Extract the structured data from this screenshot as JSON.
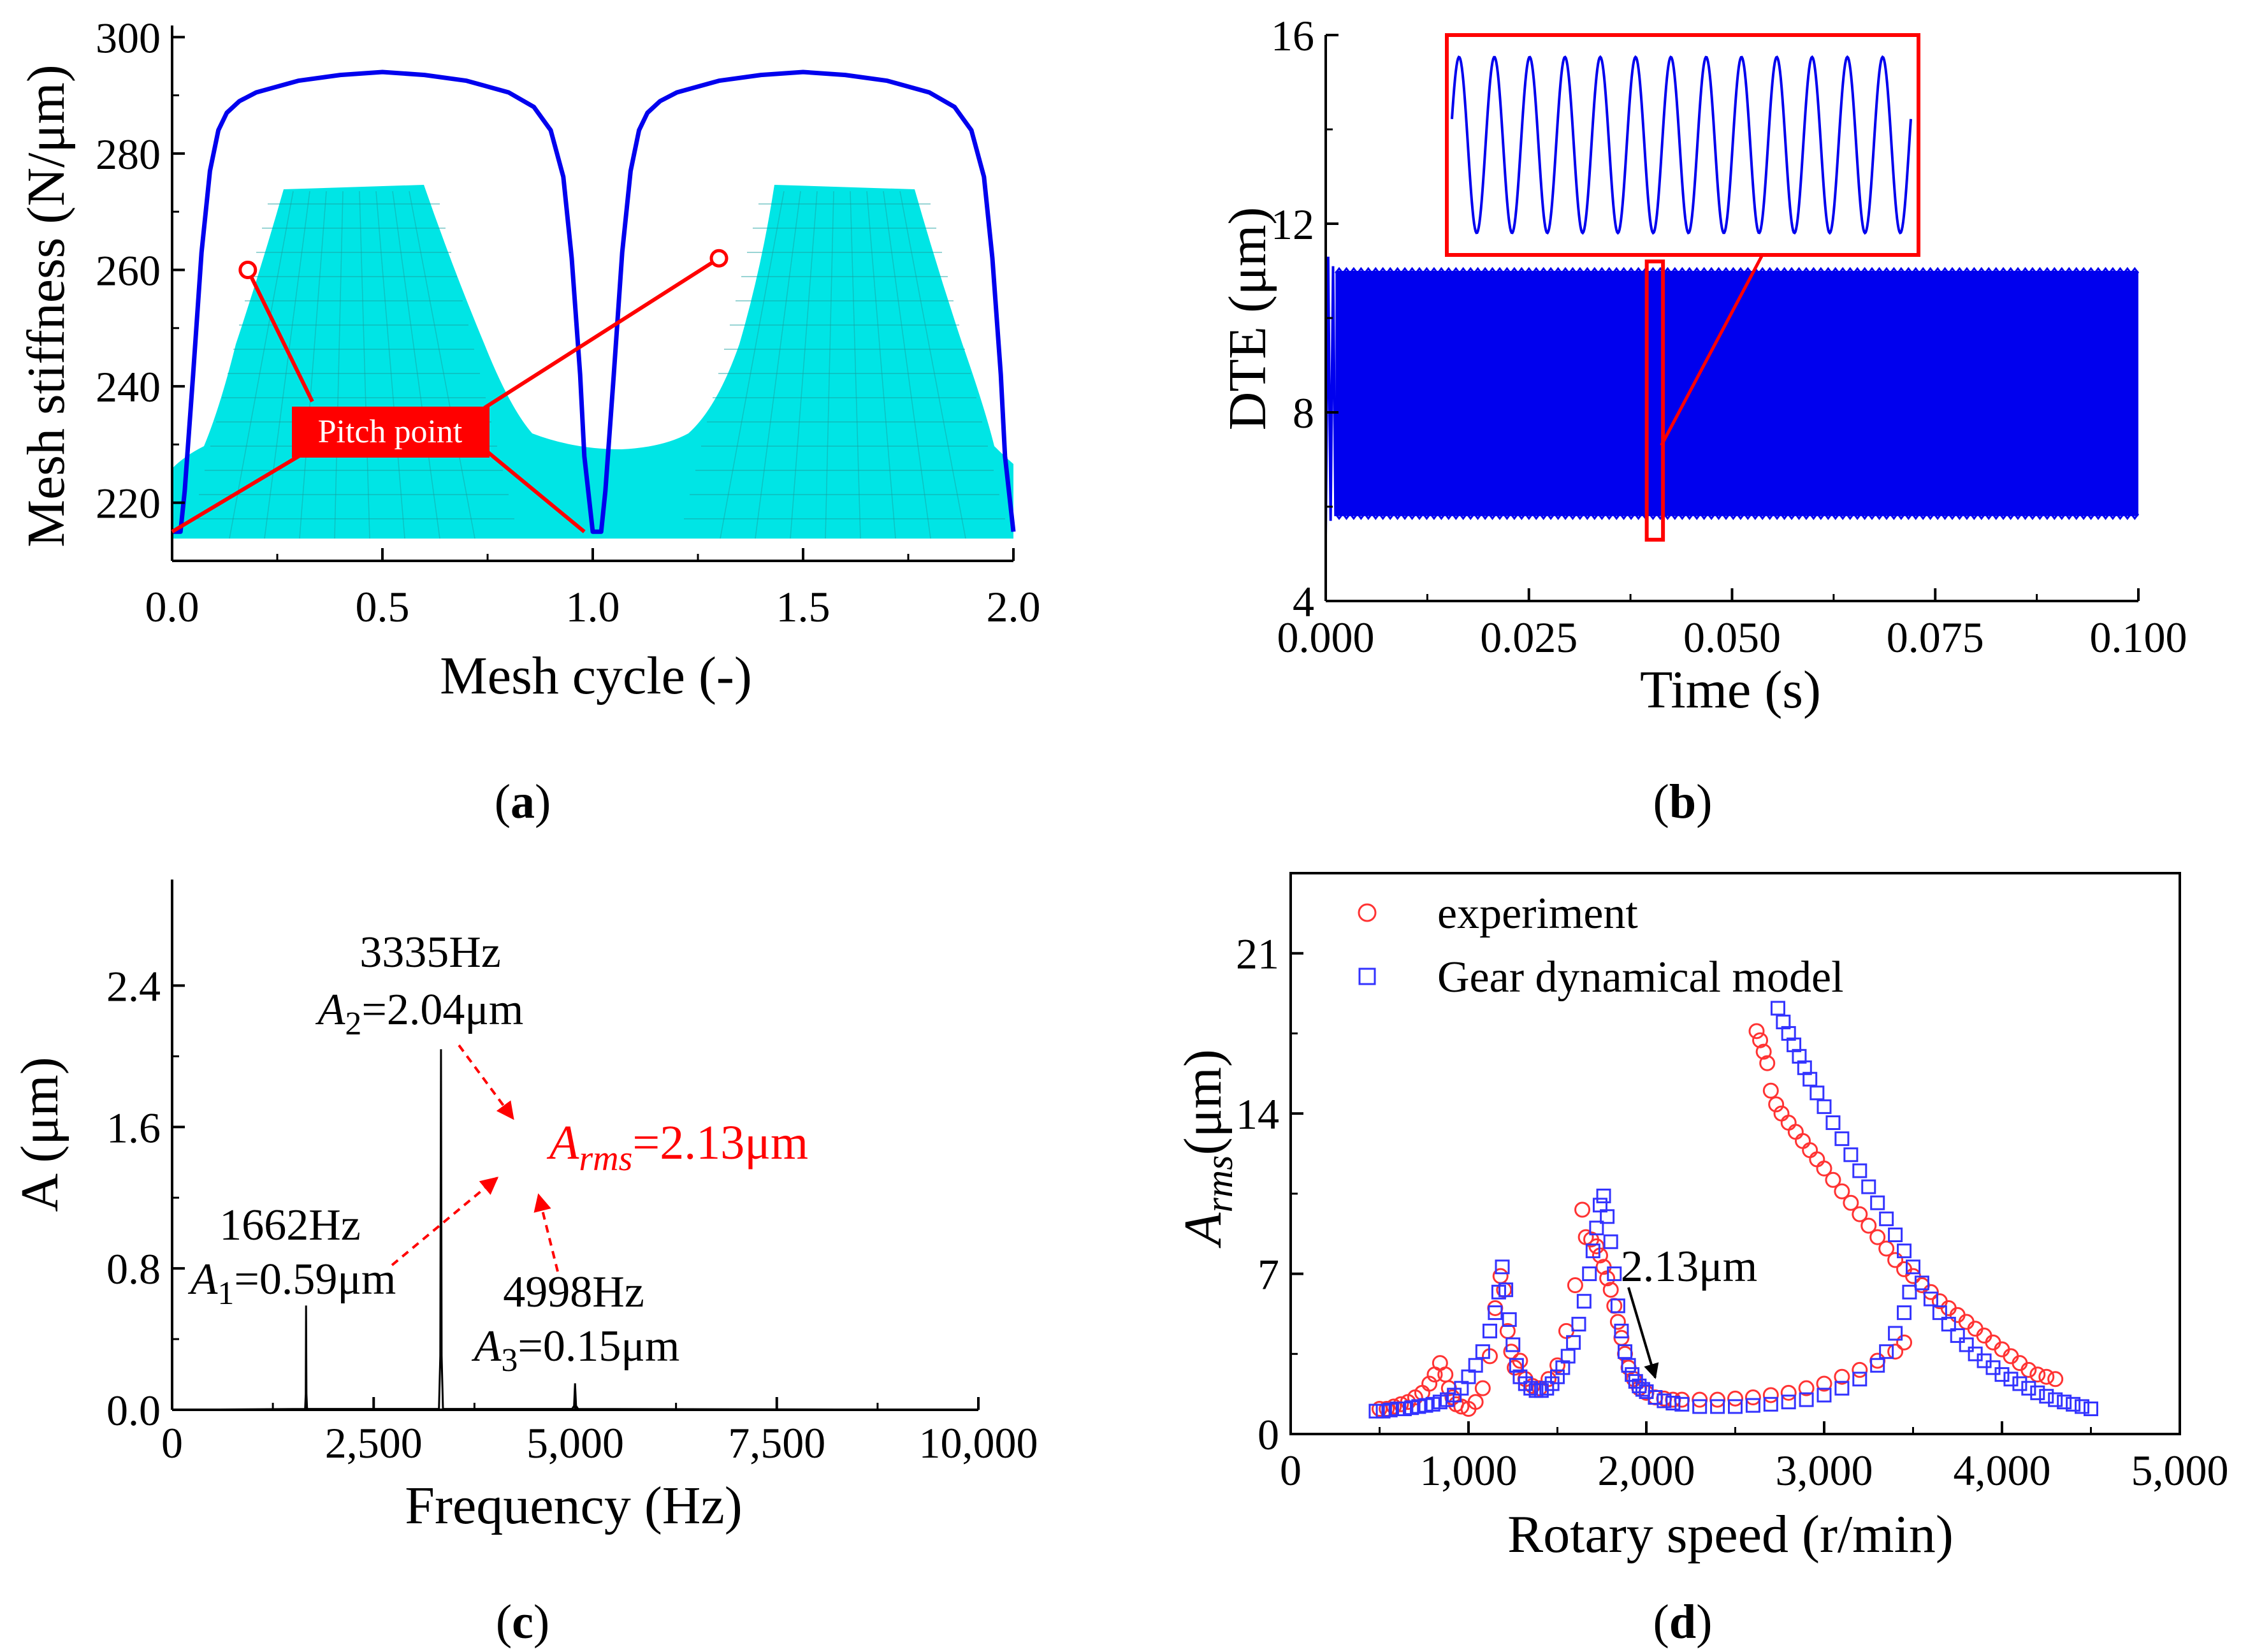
{
  "chart_data": [
    {
      "id": "a",
      "type": "line",
      "panel_label": "a",
      "xlabel": "Mesh cycle (-)",
      "ylabel": "Mesh stiffness (N/μm)",
      "xlim": [
        0.0,
        2.0
      ],
      "ylim": [
        210,
        302
      ],
      "xticks": [
        "0.0",
        "0.5",
        "1.0",
        "1.5",
        "2.0"
      ],
      "yticks": [
        "220",
        "240",
        "260",
        "280",
        "300"
      ],
      "series_color": "#0000ee",
      "series": [
        {
          "name": "mesh stiffness",
          "x": [
            0.0,
            0.02,
            0.03,
            0.05,
            0.07,
            0.09,
            0.11,
            0.13,
            0.16,
            0.2,
            0.3,
            0.4,
            0.5,
            0.6,
            0.7,
            0.8,
            0.86,
            0.9,
            0.93,
            0.95,
            0.97,
            0.98,
            1.0,
            1.02,
            1.03,
            1.05,
            1.07,
            1.09,
            1.11,
            1.13,
            1.16,
            1.2,
            1.3,
            1.4,
            1.5,
            1.6,
            1.7,
            1.8,
            1.86,
            1.9,
            1.93,
            1.95,
            1.97,
            1.98,
            2.0
          ],
          "y": [
            215,
            215,
            222,
            242,
            263,
            277,
            284,
            287,
            289,
            290.5,
            292.5,
            293.5,
            294,
            293.5,
            292.5,
            290.5,
            288,
            284,
            276,
            262,
            242,
            228,
            215,
            215,
            222,
            242,
            263,
            277,
            284,
            287,
            289,
            290.5,
            292.5,
            293.5,
            294,
            293.5,
            292.5,
            290.5,
            288,
            284,
            276,
            262,
            242,
            228,
            215
          ]
        }
      ],
      "pitch_points": [
        {
          "x": 0.18,
          "y": 260
        },
        {
          "x": 1.3,
          "y": 262
        }
      ],
      "annotation": "Pitch point",
      "annotation_color": "#ff0000",
      "gear_fill": "#00e5e5"
    },
    {
      "id": "b",
      "type": "line",
      "panel_label": "b",
      "xlabel": "Time (s)",
      "ylabel": "DTE (μm)",
      "xlim": [
        0.0,
        0.1
      ],
      "ylim": [
        4,
        16
      ],
      "xticks": [
        "0.000",
        "0.025",
        "0.050",
        "0.075",
        "0.100"
      ],
      "yticks": [
        "4",
        "8",
        "12",
        "16"
      ],
      "series_color": "#0000ee",
      "band": {
        "upper": 11.0,
        "lower": 5.8,
        "transient_max": 11.3,
        "transient_min": 5.4
      },
      "zoom_region": {
        "x0": 0.0395,
        "x1": 0.0415,
        "y0": 5.3,
        "y1": 11.2
      },
      "zoom_cycles": 13
    },
    {
      "id": "c",
      "type": "line",
      "panel_label": "c",
      "xlabel": "Frequency (Hz)",
      "ylabel": "A (μm)",
      "xlim": [
        0,
        10000
      ],
      "ylim": [
        0,
        3.0
      ],
      "xticks": [
        "0",
        "2,500",
        "5,000",
        "7,500",
        "10,000"
      ],
      "yticks": [
        "0.0",
        "0.8",
        "1.6",
        "2.4"
      ],
      "peaks": [
        {
          "freq": 1662,
          "amp": 0.59,
          "freq_label": "1662Hz",
          "sym": "A",
          "sub": "1",
          "val": "=0.59μm"
        },
        {
          "freq": 3335,
          "amp": 2.04,
          "freq_label": "3335Hz",
          "sym": "A",
          "sub": "2",
          "val": "=2.04μm"
        },
        {
          "freq": 4998,
          "amp": 0.15,
          "freq_label": "4998Hz",
          "sym": "A",
          "sub": "3",
          "val": "=0.15μm"
        }
      ],
      "rms": {
        "sym": "A",
        "sub": "rms",
        "val": "=2.13μm"
      },
      "rms_color": "#ff0000"
    },
    {
      "id": "d",
      "type": "scatter",
      "panel_label": "d",
      "xlabel": "Rotary speed (r/min)",
      "ylabel_sym": "A",
      "ylabel_sub": "rms",
      "ylabel_unit": "(μm)",
      "xlim": [
        0,
        5000
      ],
      "ylim": [
        0,
        24.5
      ],
      "xticks": [
        "0",
        "1,000",
        "2,000",
        "3,000",
        "4,000",
        "5,000"
      ],
      "yticks": [
        "0",
        "7",
        "14",
        "21"
      ],
      "legend_position": "top-left",
      "annotation": "2.13μm",
      "annotation_point": {
        "x": 2000,
        "y": 2.13
      },
      "series": [
        {
          "name": "experiment",
          "marker": "circle",
          "color": "#ff3333",
          "x": [
            500,
            540,
            580,
            620,
            660,
            700,
            740,
            780,
            810,
            840,
            870,
            890,
            910,
            930,
            960,
            1000,
            1040,
            1080,
            1120,
            1150,
            1180,
            1200,
            1220,
            1240,
            1260,
            1290,
            1320,
            1360,
            1400,
            1450,
            1500,
            1550,
            1600,
            1640,
            1660,
            1690,
            1720,
            1740,
            1760,
            1780,
            1800,
            1820,
            1840,
            1860,
            1880,
            1900,
            1930,
            1960,
            2000,
            2050,
            2100,
            2150,
            2200,
            2300,
            2400,
            2500,
            2600,
            2700,
            2800,
            2900,
            3000,
            3100,
            3200,
            3300,
            3400,
            3450,
            2620,
            2640,
            2660,
            2680,
            2700,
            2730,
            2760,
            2800,
            2840,
            2880,
            2920,
            2960,
            3000,
            3050,
            3100,
            3150,
            3200,
            3250,
            3300,
            3350,
            3400,
            3450,
            3500,
            3550,
            3600,
            3650,
            3700,
            3750,
            3800,
            3850,
            3900,
            3950,
            4000,
            4050,
            4100,
            4150,
            4200,
            4250,
            4300
          ],
          "y": [
            1.1,
            1.1,
            1.2,
            1.3,
            1.4,
            1.6,
            1.8,
            2.2,
            2.6,
            3.1,
            2.6,
            2.0,
            1.6,
            1.3,
            1.2,
            1.1,
            1.4,
            2.0,
            3.4,
            5.5,
            6.9,
            6.3,
            4.5,
            3.6,
            2.9,
            3.2,
            2.4,
            2.1,
            2.0,
            2.4,
            3.0,
            4.5,
            6.5,
            9.8,
            8.6,
            8.5,
            8.2,
            7.8,
            7.3,
            6.8,
            6.3,
            5.6,
            4.9,
            4.2,
            3.5,
            2.9,
            2.4,
            2.0,
            1.8,
            1.6,
            1.55,
            1.5,
            1.5,
            1.5,
            1.5,
            1.55,
            1.6,
            1.7,
            1.8,
            2.0,
            2.2,
            2.5,
            2.8,
            3.2,
            3.6,
            4.0,
            17.6,
            17.2,
            16.7,
            16.2,
            15.0,
            14.4,
            14.0,
            13.6,
            13.2,
            12.8,
            12.4,
            12.0,
            11.6,
            11.1,
            10.6,
            10.1,
            9.6,
            9.1,
            8.6,
            8.1,
            7.6,
            7.2,
            6.9,
            6.5,
            6.2,
            5.8,
            5.5,
            5.2,
            4.9,
            4.6,
            4.3,
            4.0,
            3.7,
            3.4,
            3.1,
            2.8,
            2.6,
            2.5,
            2.4
          ]
        },
        {
          "name": "Gear dynamical model",
          "marker": "square",
          "color": "#3333ff",
          "x": [
            480,
            520,
            560,
            600,
            640,
            680,
            720,
            760,
            800,
            840,
            880,
            920,
            960,
            1000,
            1040,
            1080,
            1120,
            1150,
            1170,
            1190,
            1210,
            1230,
            1250,
            1270,
            1290,
            1320,
            1350,
            1380,
            1410,
            1440,
            1470,
            1500,
            1530,
            1560,
            1590,
            1620,
            1650,
            1680,
            1700,
            1720,
            1740,
            1760,
            1780,
            1800,
            1820,
            1840,
            1860,
            1880,
            1900,
            1920,
            1940,
            1960,
            1980,
            2000,
            2050,
            2100,
            2150,
            2200,
            2300,
            2400,
            2500,
            2600,
            2700,
            2800,
            2900,
            3000,
            3100,
            3200,
            3300,
            3350,
            3400,
            3450,
            3480,
            2740,
            2770,
            2800,
            2830,
            2860,
            2890,
            2920,
            2960,
            3000,
            3050,
            3100,
            3150,
            3200,
            3250,
            3300,
            3350,
            3400,
            3450,
            3500,
            3550,
            3600,
            3650,
            3700,
            3750,
            3800,
            3850,
            3900,
            3950,
            4000,
            4050,
            4100,
            4150,
            4200,
            4250,
            4300,
            4350,
            4400,
            4450,
            4500
          ],
          "y": [
            1.0,
            1.0,
            1.05,
            1.1,
            1.1,
            1.15,
            1.2,
            1.25,
            1.3,
            1.4,
            1.5,
            1.7,
            2.0,
            2.5,
            3.0,
            3.6,
            4.5,
            5.3,
            6.2,
            7.3,
            6.3,
            5.0,
            3.9,
            3.0,
            2.5,
            2.2,
            2.0,
            1.9,
            1.9,
            2.0,
            2.2,
            2.5,
            2.9,
            3.4,
            4.0,
            4.8,
            5.8,
            7.0,
            8.0,
            9.0,
            10.0,
            10.4,
            9.5,
            8.4,
            7.0,
            5.6,
            4.5,
            3.6,
            3.0,
            2.6,
            2.3,
            2.1,
            1.95,
            1.85,
            1.6,
            1.45,
            1.35,
            1.3,
            1.2,
            1.2,
            1.2,
            1.25,
            1.3,
            1.4,
            1.5,
            1.7,
            2.0,
            2.4,
            3.0,
            3.6,
            4.4,
            5.3,
            6.2,
            18.6,
            18.0,
            17.5,
            17.0,
            16.5,
            16.0,
            15.5,
            14.9,
            14.3,
            13.6,
            12.9,
            12.2,
            11.5,
            10.8,
            10.1,
            9.4,
            8.7,
            8.0,
            7.3,
            6.6,
            5.9,
            5.3,
            4.8,
            4.3,
            3.9,
            3.5,
            3.2,
            2.9,
            2.6,
            2.4,
            2.2,
            2.0,
            1.8,
            1.65,
            1.5,
            1.4,
            1.3,
            1.2,
            1.1
          ]
        }
      ]
    }
  ]
}
